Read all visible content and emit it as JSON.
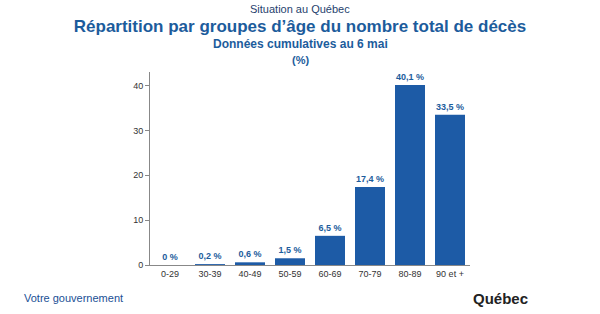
{
  "chart_data": {
    "type": "bar",
    "supertitle": "Situation au Québec",
    "title": "Répartition par groupes d’âge du nombre total de décès",
    "subtitle": "Données cumulatives au 6 mai",
    "unit_label": "(%)",
    "annotations": [
      "Votre gouvernement",
      "Québec"
    ],
    "categories": [
      "0-29",
      "30-39",
      "40-49",
      "50-59",
      "60-69",
      "70-79",
      "80-89",
      "90 et +"
    ],
    "values": [
      0,
      0.2,
      0.6,
      1.5,
      6.5,
      17.4,
      40.1,
      33.5
    ],
    "value_labels": [
      "0 %",
      "0,2 %",
      "0,6 %",
      "1,5 %",
      "6,5 %",
      "17,4 %",
      "40,1 %",
      "33,5 %"
    ],
    "data_labels": true,
    "color": "#1d5ba6",
    "ylim": [
      0,
      43
    ],
    "yticks": [
      0,
      10,
      20,
      30,
      40
    ],
    "grid": false
  }
}
